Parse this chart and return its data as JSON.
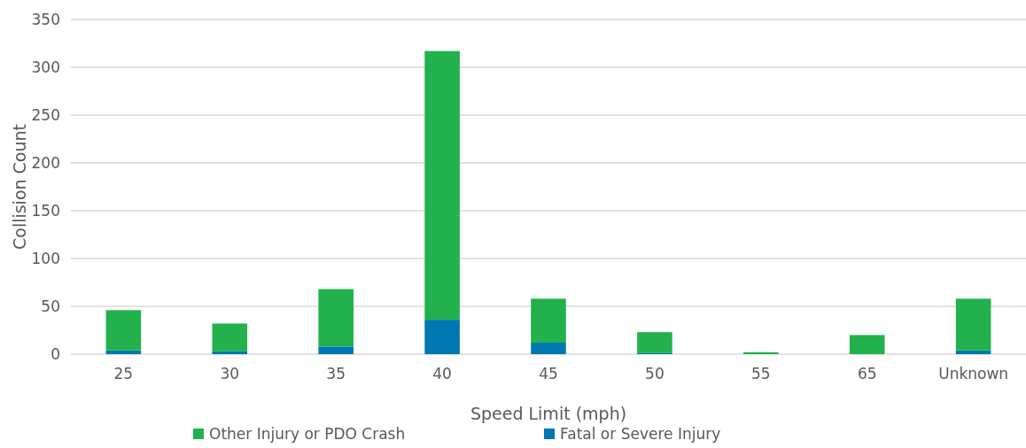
{
  "chart_data": {
    "type": "bar",
    "stacked": true,
    "xlabel": "Speed Limit (mph)",
    "ylabel": "Collision Count",
    "categories": [
      "25",
      "30",
      "35",
      "40",
      "45",
      "50",
      "55",
      "65",
      "Unknown"
    ],
    "series": [
      {
        "name": "Fatal or Severe Injury",
        "color": "#0077b0",
        "values": [
          4,
          3,
          8,
          36,
          12,
          1,
          0,
          0,
          4
        ]
      },
      {
        "name": "Other Injury or PDO Crash",
        "color": "#22b14c",
        "values": [
          42,
          29,
          60,
          281,
          46,
          22,
          2,
          20,
          54
        ]
      }
    ],
    "ylim": [
      0,
      350
    ],
    "yticks": [
      0,
      50,
      100,
      150,
      200,
      250,
      300,
      350
    ],
    "grid": "y",
    "legend": "bottom"
  }
}
